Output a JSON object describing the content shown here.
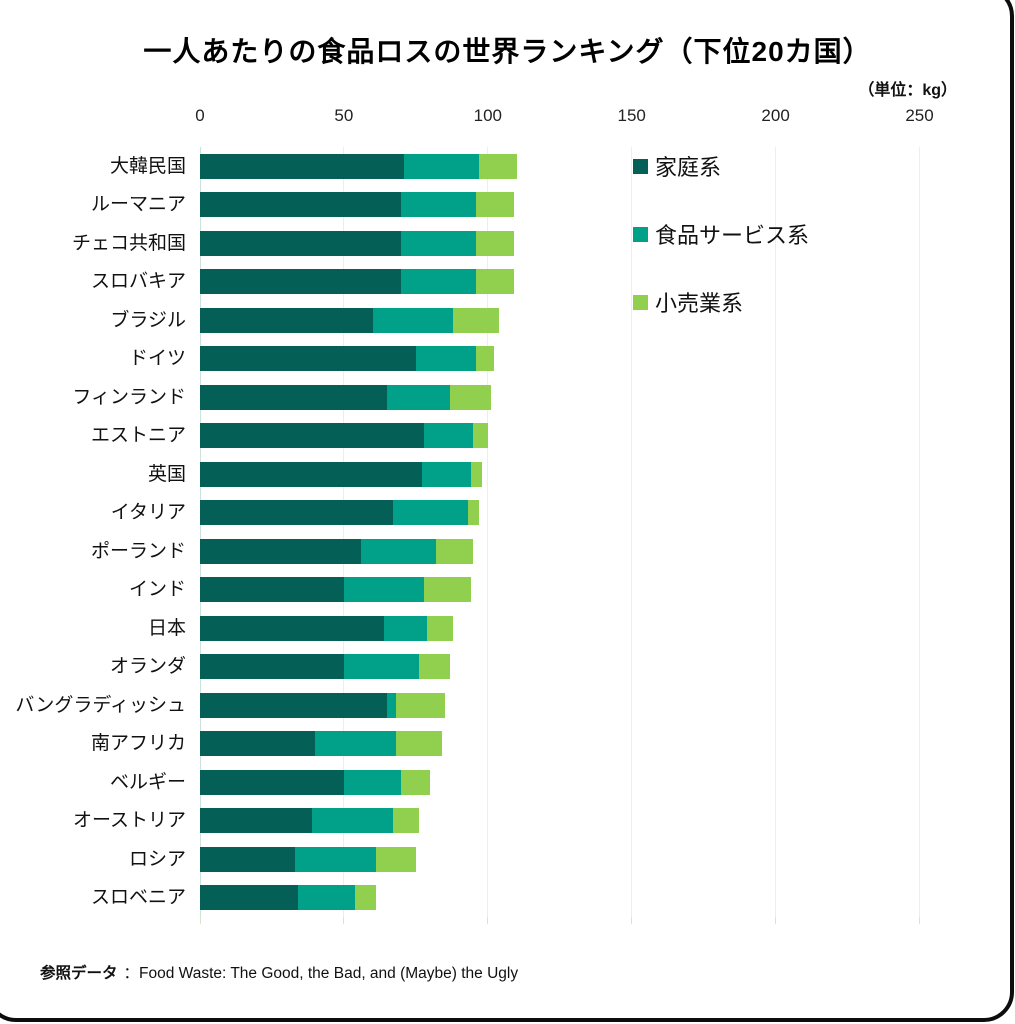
{
  "title": "一人あたりの食品ロスの世界ランキング（下位20カ国）",
  "unit_note": "（単位：kg）",
  "source": {
    "label": "参照データ",
    "text": "：Food Waste: The Good, the Bad, and (Maybe) the Ugly"
  },
  "colors": {
    "household": "#045f57",
    "food_service": "#01a189",
    "retail": "#90d04e",
    "gridline": "#edf0e1",
    "axis_line": "#cfe2d9"
  },
  "chart_data": {
    "type": "bar",
    "orientation": "horizontal",
    "stacked": true,
    "title": "一人あたりの食品ロスの世界ランキング（下位20カ国）",
    "unit": "kg",
    "xlim": [
      0,
      250
    ],
    "x_ticks": [
      0,
      50,
      100,
      150,
      200,
      250
    ],
    "grid": "vertical",
    "legend_position": "inside-top-right",
    "categories": [
      "大韓民国",
      "ルーマニア",
      "チェコ共和国",
      "スロバキア",
      "ブラジル",
      "ドイツ",
      "フィンランド",
      "エストニア",
      "英国",
      "イタリア",
      "ポーランド",
      "インド",
      "日本",
      "オランダ",
      "バングラディッシュ",
      "南アフリカ",
      "ベルギー",
      "オーストリア",
      "ロシア",
      "スロベニア"
    ],
    "series": [
      {
        "name": "家庭系",
        "color": "#045f57",
        "values": [
          71,
          70,
          70,
          70,
          60,
          75,
          65,
          78,
          77,
          67,
          56,
          50,
          64,
          50,
          65,
          40,
          50,
          39,
          33,
          34
        ]
      },
      {
        "name": "食品サービス系",
        "color": "#01a189",
        "values": [
          26,
          26,
          26,
          26,
          28,
          21,
          22,
          17,
          17,
          26,
          26,
          28,
          15,
          26,
          3,
          28,
          20,
          28,
          28,
          20
        ]
      },
      {
        "name": "小売業系",
        "color": "#90d04e",
        "values": [
          13,
          13,
          13,
          13,
          16,
          6,
          14,
          5,
          4,
          4,
          13,
          16,
          9,
          11,
          17,
          16,
          10,
          9,
          14,
          7
        ]
      }
    ],
    "totals": [
      110,
      109,
      109,
      109,
      104,
      102,
      101,
      100,
      98,
      97,
      95,
      94,
      88,
      87,
      85,
      84,
      80,
      76,
      75,
      61
    ]
  }
}
